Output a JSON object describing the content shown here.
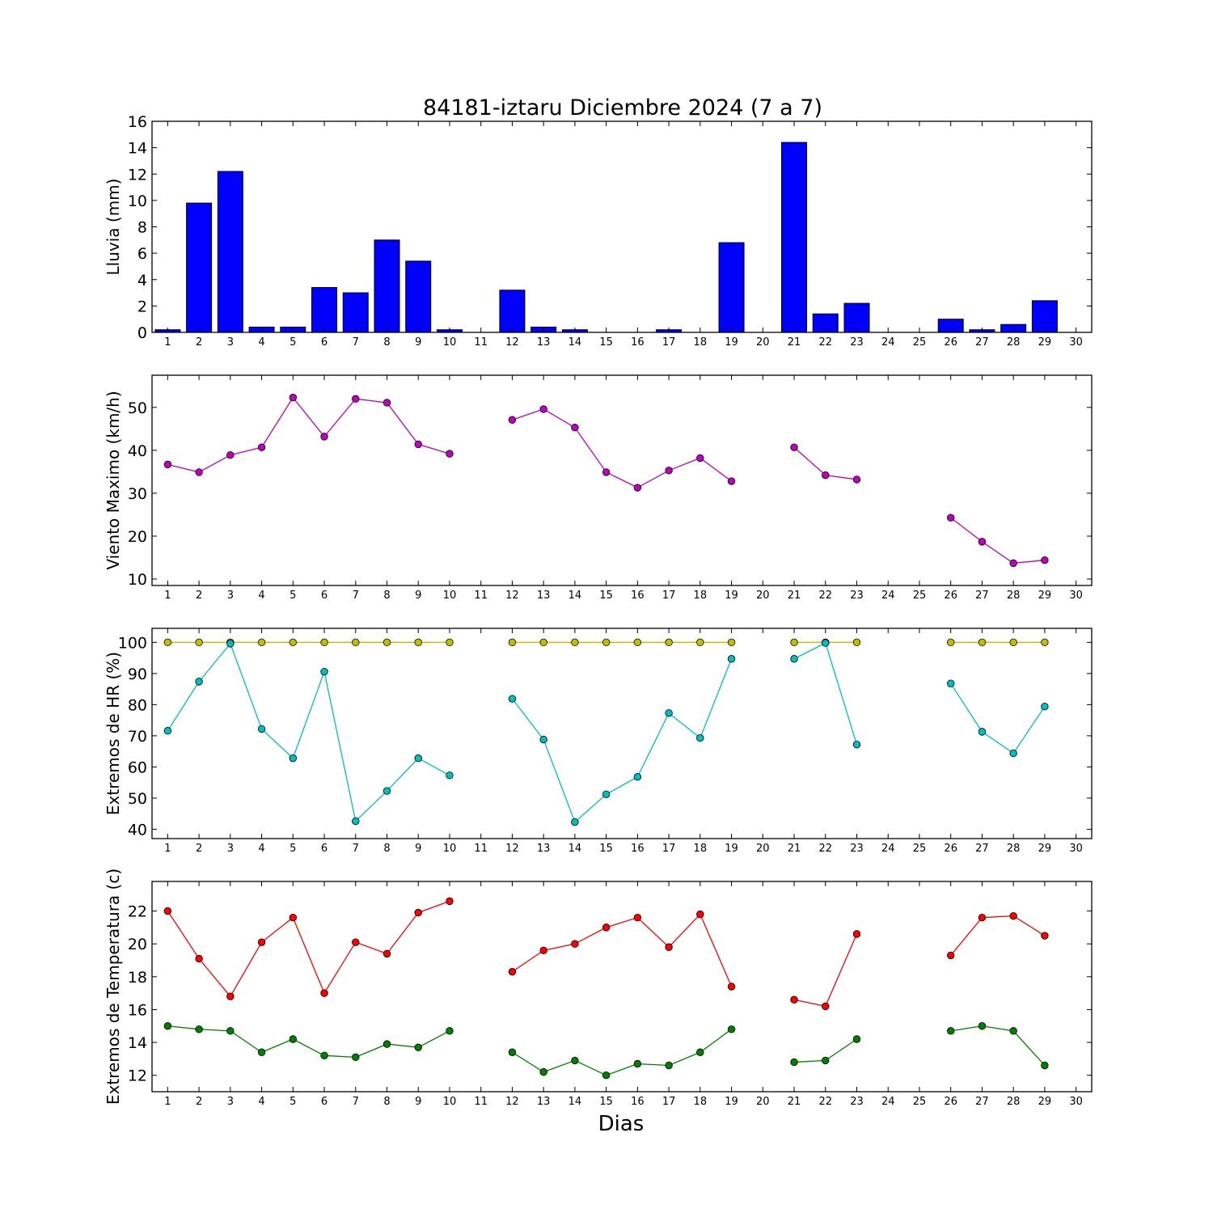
{
  "title": "84181-iztaru Diciembre 2024  (7 a 7)",
  "xlabel": "Dias",
  "colors": {
    "rain": "#0000ff",
    "wind": "#bf00bf",
    "hr_max": "#bfbf00",
    "hr_min": "#00bfbf",
    "temp_max": "#ff0000",
    "temp_min": "#008000"
  },
  "chart_data": [
    {
      "type": "bar",
      "ylabel": "Lluvia (mm)",
      "ylim": [
        0,
        16
      ],
      "yticks": [
        0,
        2,
        4,
        6,
        8,
        10,
        12,
        14,
        16
      ],
      "xlim": [
        0.5,
        30.5
      ],
      "xticks": [
        1,
        2,
        3,
        4,
        5,
        6,
        7,
        8,
        9,
        10,
        11,
        12,
        13,
        14,
        15,
        16,
        17,
        18,
        19,
        20,
        21,
        22,
        23,
        24,
        25,
        26,
        27,
        28,
        29,
        30
      ],
      "series": [
        {
          "color": "#0000ff",
          "points": [
            [
              1,
              0.2
            ],
            [
              2,
              9.8
            ],
            [
              3,
              12.2
            ],
            [
              4,
              0.4
            ],
            [
              5,
              0.4
            ],
            [
              6,
              3.4
            ],
            [
              7,
              3.0
            ],
            [
              8,
              7.0
            ],
            [
              9,
              5.4
            ],
            [
              10,
              0.2
            ],
            [
              12,
              3.2
            ],
            [
              13,
              0.4
            ],
            [
              14,
              0.2
            ],
            [
              15,
              0.0
            ],
            [
              16,
              0.0
            ],
            [
              17,
              0.2
            ],
            [
              19,
              6.8
            ],
            [
              21,
              14.4
            ],
            [
              22,
              1.4
            ],
            [
              23,
              2.2
            ],
            [
              26,
              1.0
            ],
            [
              27,
              0.2
            ],
            [
              28,
              0.6
            ],
            [
              29,
              2.4
            ]
          ]
        }
      ]
    },
    {
      "type": "line",
      "ylabel": "Viento Maximo (km/h)",
      "ylim": [
        8.5,
        57.5
      ],
      "yticks": [
        10,
        20,
        30,
        40,
        50
      ],
      "xlim": [
        0.5,
        30.5
      ],
      "xticks": [
        1,
        2,
        3,
        4,
        5,
        6,
        7,
        8,
        9,
        10,
        11,
        12,
        13,
        14,
        15,
        16,
        17,
        18,
        19,
        20,
        21,
        22,
        23,
        24,
        25,
        26,
        27,
        28,
        29,
        30
      ],
      "series": [
        {
          "color": "#bf00bf",
          "points": [
            [
              1,
              36.7
            ],
            [
              2,
              34.9
            ],
            [
              3,
              38.9
            ],
            [
              4,
              40.7
            ],
            [
              5,
              52.3
            ],
            [
              6,
              43.2
            ],
            [
              7,
              52.0
            ],
            [
              8,
              51.1
            ],
            [
              9,
              41.4
            ],
            [
              10,
              39.2
            ],
            [
              11,
              null
            ],
            [
              12,
              47.1
            ],
            [
              13,
              49.6
            ],
            [
              14,
              45.3
            ],
            [
              15,
              34.9
            ],
            [
              16,
              31.3
            ],
            [
              17,
              35.3
            ],
            [
              18,
              38.2
            ],
            [
              19,
              32.8
            ],
            [
              20,
              null
            ],
            [
              21,
              40.7
            ],
            [
              22,
              34.2
            ],
            [
              23,
              33.2
            ],
            [
              24,
              null
            ],
            [
              25,
              null
            ],
            [
              26,
              24.3
            ],
            [
              27,
              18.7
            ],
            [
              28,
              13.7
            ],
            [
              29,
              14.4
            ]
          ]
        }
      ]
    },
    {
      "type": "line",
      "ylabel": "Extremos de HR (%)",
      "ylim": [
        37,
        104.5
      ],
      "yticks": [
        40,
        50,
        60,
        70,
        80,
        90,
        100
      ],
      "xlim": [
        0.5,
        30.5
      ],
      "xticks": [
        1,
        2,
        3,
        4,
        5,
        6,
        7,
        8,
        9,
        10,
        11,
        12,
        13,
        14,
        15,
        16,
        17,
        18,
        19,
        20,
        21,
        22,
        23,
        24,
        25,
        26,
        27,
        28,
        29,
        30
      ],
      "series": [
        {
          "color": "#bfbf00",
          "points": [
            [
              1,
              100
            ],
            [
              2,
              100
            ],
            [
              3,
              100
            ],
            [
              4,
              100
            ],
            [
              5,
              100
            ],
            [
              6,
              100
            ],
            [
              7,
              100
            ],
            [
              8,
              100
            ],
            [
              9,
              100
            ],
            [
              10,
              100
            ],
            [
              11,
              null
            ],
            [
              12,
              100
            ],
            [
              13,
              100
            ],
            [
              14,
              100
            ],
            [
              15,
              100
            ],
            [
              16,
              100
            ],
            [
              17,
              100
            ],
            [
              18,
              100
            ],
            [
              19,
              100
            ],
            [
              20,
              null
            ],
            [
              21,
              100
            ],
            [
              22,
              100
            ],
            [
              23,
              100
            ],
            [
              24,
              null
            ],
            [
              25,
              null
            ],
            [
              26,
              100
            ],
            [
              27,
              100
            ],
            [
              28,
              100
            ],
            [
              29,
              100
            ]
          ]
        },
        {
          "color": "#00bfbf",
          "points": [
            [
              1,
              71.6
            ],
            [
              2,
              87.4
            ],
            [
              3,
              99.6
            ],
            [
              4,
              72.2
            ],
            [
              5,
              62.8
            ],
            [
              6,
              90.6
            ],
            [
              7,
              42.6
            ],
            [
              8,
              52.3
            ],
            [
              9,
              62.8
            ],
            [
              10,
              57.3
            ],
            [
              11,
              null
            ],
            [
              12,
              81.9
            ],
            [
              13,
              68.8
            ],
            [
              14,
              42.3
            ],
            [
              15,
              51.2
            ],
            [
              16,
              56.8
            ],
            [
              17,
              77.3
            ],
            [
              18,
              69.3
            ],
            [
              19,
              94.7
            ],
            [
              20,
              null
            ],
            [
              21,
              94.7
            ],
            [
              22,
              99.8
            ],
            [
              23,
              67.2
            ],
            [
              24,
              null
            ],
            [
              25,
              null
            ],
            [
              26,
              86.8
            ],
            [
              27,
              71.3
            ],
            [
              28,
              64.4
            ],
            [
              29,
              79.4
            ]
          ]
        }
      ]
    },
    {
      "type": "line",
      "ylabel": "Extremos de Temperatura (c)",
      "ylim": [
        11,
        23.8
      ],
      "yticks": [
        12,
        14,
        16,
        18,
        20,
        22
      ],
      "xlim": [
        0.5,
        30.5
      ],
      "xticks": [
        1,
        2,
        3,
        4,
        5,
        6,
        7,
        8,
        9,
        10,
        11,
        12,
        13,
        14,
        15,
        16,
        17,
        18,
        19,
        20,
        21,
        22,
        23,
        24,
        25,
        26,
        27,
        28,
        29,
        30
      ],
      "series": [
        {
          "color": "#ff0000",
          "points": [
            [
              1,
              22.0
            ],
            [
              2,
              19.1
            ],
            [
              3,
              16.8
            ],
            [
              4,
              20.1
            ],
            [
              5,
              21.6
            ],
            [
              6,
              17.0
            ],
            [
              7,
              20.1
            ],
            [
              8,
              19.4
            ],
            [
              9,
              21.9
            ],
            [
              10,
              22.6
            ],
            [
              11,
              null
            ],
            [
              12,
              18.3
            ],
            [
              13,
              19.6
            ],
            [
              14,
              20.0
            ],
            [
              15,
              21.0
            ],
            [
              16,
              21.6
            ],
            [
              17,
              19.8
            ],
            [
              18,
              21.8
            ],
            [
              19,
              17.4
            ],
            [
              20,
              null
            ],
            [
              21,
              16.6
            ],
            [
              22,
              16.2
            ],
            [
              23,
              20.6
            ],
            [
              24,
              null
            ],
            [
              25,
              null
            ],
            [
              26,
              19.3
            ],
            [
              27,
              21.6
            ],
            [
              28,
              21.7
            ],
            [
              29,
              20.5
            ]
          ]
        },
        {
          "color": "#008000",
          "points": [
            [
              1,
              15.0
            ],
            [
              2,
              14.8
            ],
            [
              3,
              14.7
            ],
            [
              4,
              13.4
            ],
            [
              5,
              14.2
            ],
            [
              6,
              13.2
            ],
            [
              7,
              13.1
            ],
            [
              8,
              13.9
            ],
            [
              9,
              13.7
            ],
            [
              10,
              14.7
            ],
            [
              11,
              null
            ],
            [
              12,
              13.4
            ],
            [
              13,
              12.2
            ],
            [
              14,
              12.9
            ],
            [
              15,
              12.0
            ],
            [
              16,
              12.7
            ],
            [
              17,
              12.6
            ],
            [
              18,
              13.4
            ],
            [
              19,
              14.8
            ],
            [
              20,
              null
            ],
            [
              21,
              12.8
            ],
            [
              22,
              12.9
            ],
            [
              23,
              14.2
            ],
            [
              24,
              null
            ],
            [
              25,
              null
            ],
            [
              26,
              14.7
            ],
            [
              27,
              15.0
            ],
            [
              28,
              14.7
            ],
            [
              29,
              12.6
            ]
          ]
        }
      ]
    }
  ]
}
